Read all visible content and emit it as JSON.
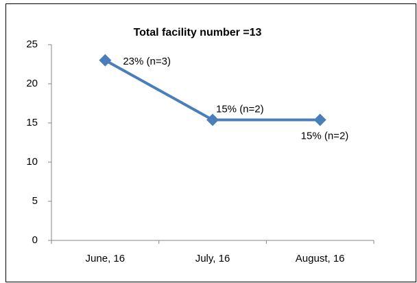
{
  "chart_data": {
    "type": "line",
    "title": "Total facility number =13",
    "categories": [
      "June, 16",
      "July, 16",
      "August, 16"
    ],
    "series": [
      {
        "color": "#4a7ebb",
        "values": [
          23,
          15.4,
          15.4
        ],
        "value_labels": [
          "23% (n=3)",
          "15% (n=2)",
          "15% (n=2)"
        ]
      }
    ],
    "ylim": [
      0,
      25
    ],
    "yticks": [
      0,
      5,
      10,
      15,
      20,
      25
    ],
    "grid": false
  }
}
